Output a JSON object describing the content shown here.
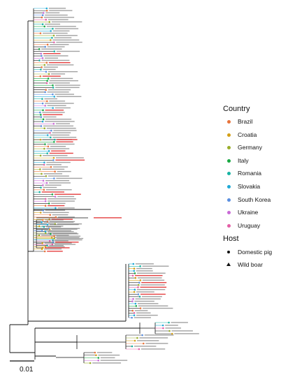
{
  "legend": {
    "country_title": "Country",
    "countries": [
      {
        "name": "Brazil",
        "color": "#e8743b"
      },
      {
        "name": "Croatia",
        "color": "#d4a017"
      },
      {
        "name": "Germany",
        "color": "#9aae2a"
      },
      {
        "name": "Italy",
        "color": "#19a843"
      },
      {
        "name": "Romania",
        "color": "#17b3a3"
      },
      {
        "name": "Slovakia",
        "color": "#1fa9d6"
      },
      {
        "name": "South Korea",
        "color": "#5b8fe0"
      },
      {
        "name": "Ukraine",
        "color": "#c96ad6"
      },
      {
        "name": "Uruguay",
        "color": "#e45fa6"
      }
    ],
    "host_title": "Host",
    "hosts": [
      {
        "name": "Domestic pig",
        "shape": "circle"
      },
      {
        "name": "Wild boar",
        "shape": "triangle"
      }
    ]
  },
  "scale_bar": {
    "label": "0.01"
  },
  "colors": {
    "branch": "#111111",
    "highlight_label": "#e02020",
    "tip_label": "#555555"
  }
}
